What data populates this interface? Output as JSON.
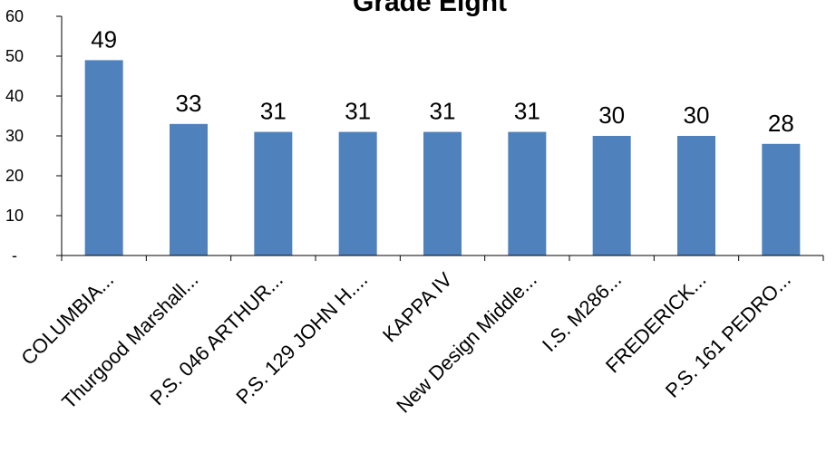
{
  "chart_data": {
    "type": "bar",
    "title": "Grade Eight",
    "xlabel": "",
    "ylabel": "",
    "categories": [
      "COLUMBIA...",
      "Thurgood Marshall...",
      "P.S. 046 ARTHUR...",
      "P.S. 129 JOHN H....",
      "KAPPA IV",
      "New Design Middle...",
      "I.S. M286...",
      "FREDERICK...",
      "P.S. 161 PEDRO..."
    ],
    "values": [
      49,
      33,
      31,
      31,
      31,
      31,
      30,
      30,
      28
    ],
    "ylim": [
      0,
      60
    ],
    "yticks": [
      0,
      10,
      20,
      30,
      40,
      50,
      60
    ],
    "ytick_labels": [
      "-",
      "10",
      "20",
      "30",
      "40",
      "50",
      "60"
    ],
    "grid": false,
    "legend": "none",
    "bar_color": "#4F81BD",
    "axis_color": "#000000"
  }
}
